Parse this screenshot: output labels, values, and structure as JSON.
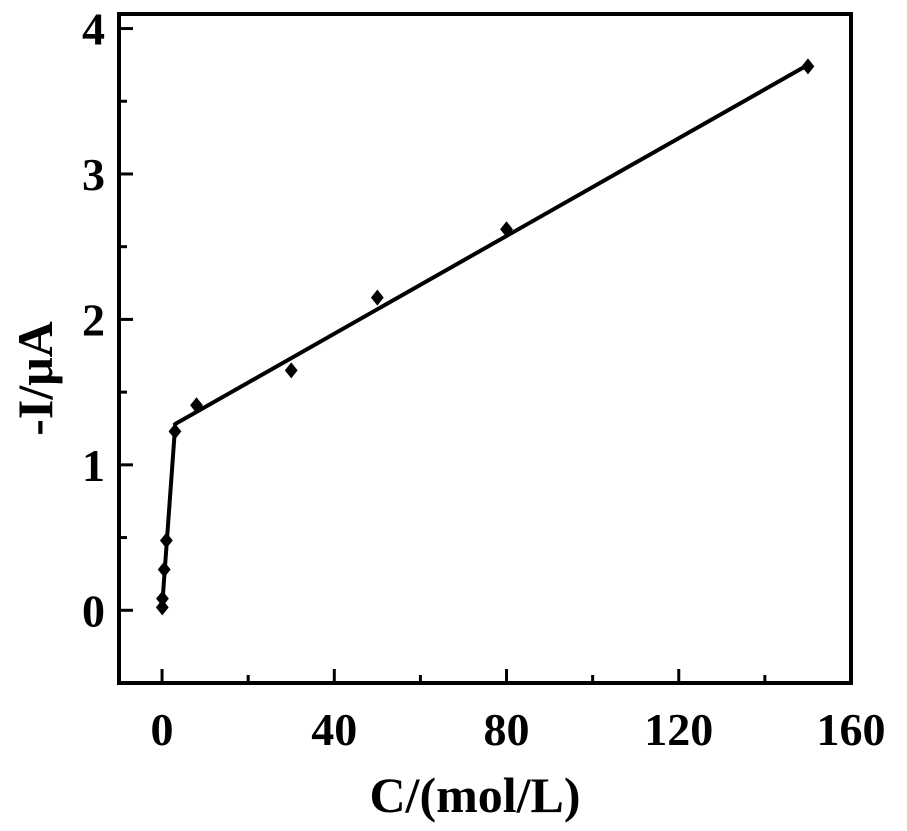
{
  "chart_data": {
    "type": "scatter",
    "xlabel": "C/(mol/L)",
    "ylabel": "-I/μA",
    "xlim": [
      -10,
      160
    ],
    "ylim": [
      -0.5,
      4.1
    ],
    "xticks": [
      0,
      40,
      80,
      120,
      160
    ],
    "yticks": [
      0,
      1,
      2,
      3,
      4
    ],
    "xtick_labels": [
      "0",
      "40",
      "80",
      "120",
      "160"
    ],
    "ytick_labels": [
      "0",
      "1",
      "2",
      "3",
      "4"
    ],
    "grid": false,
    "legend": "none",
    "series": [
      {
        "marker": "diamond",
        "x": [
          0.05,
          0.1,
          0.5,
          1,
          3,
          8,
          30,
          50,
          80,
          150
        ],
        "y": [
          0.02,
          0.08,
          0.28,
          0.48,
          1.23,
          1.41,
          1.65,
          2.15,
          2.62,
          3.74
        ]
      }
    ],
    "fit_lines": [
      {
        "x": [
          0,
          3
        ],
        "y": [
          0.02,
          1.25
        ]
      },
      {
        "x": [
          3,
          150
        ],
        "y": [
          1.28,
          3.75
        ]
      }
    ],
    "colors": {
      "marker": "#000000",
      "line": "#000000",
      "axis": "#000000"
    }
  }
}
